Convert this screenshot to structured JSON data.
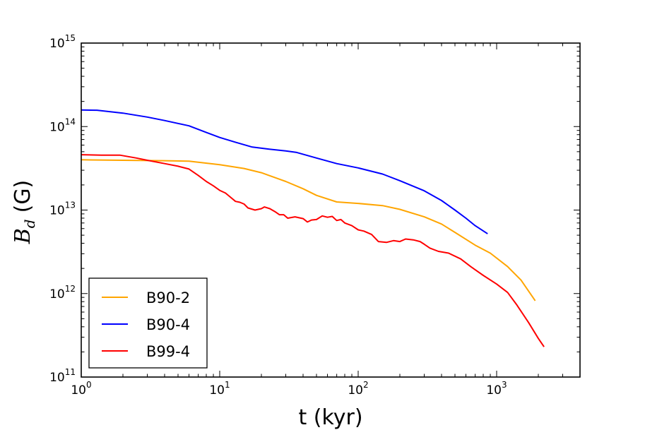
{
  "chart_data": {
    "type": "line",
    "xscale": "log",
    "yscale": "log",
    "xlim": [
      1,
      4000
    ],
    "ylim": [
      100000000000.0,
      1000000000000000.0
    ],
    "xlabel": "t (kyr)",
    "ylabel": {
      "symbol": "B",
      "subscript": "d",
      "unit": "(G)"
    },
    "xticks": [
      {
        "value": 1,
        "base": "10",
        "exp": "0"
      },
      {
        "value": 10,
        "base": "10",
        "exp": "1"
      },
      {
        "value": 100,
        "base": "10",
        "exp": "2"
      },
      {
        "value": 1000,
        "base": "10",
        "exp": "3"
      }
    ],
    "yticks": [
      {
        "value": 100000000000.0,
        "base": "10",
        "exp": "11"
      },
      {
        "value": 1000000000000.0,
        "base": "10",
        "exp": "12"
      },
      {
        "value": 10000000000000.0,
        "base": "10",
        "exp": "13"
      },
      {
        "value": 100000000000000.0,
        "base": "10",
        "exp": "14"
      },
      {
        "value": 1000000000000000.0,
        "base": "10",
        "exp": "15"
      }
    ],
    "legend_position": "lower-left",
    "series": [
      {
        "name": "B90-2",
        "color": "#ffa500",
        "points": [
          [
            1,
            40000000000000.0
          ],
          [
            2,
            39500000000000.0
          ],
          [
            4,
            39000000000000.0
          ],
          [
            6,
            38500000000000.0
          ],
          [
            10,
            35000000000000.0
          ],
          [
            15,
            31500000000000.0
          ],
          [
            20,
            28000000000000.0
          ],
          [
            30,
            22000000000000.0
          ],
          [
            40,
            18000000000000.0
          ],
          [
            50,
            15000000000000.0
          ],
          [
            70,
            12500000000000.0
          ],
          [
            100,
            12000000000000.0
          ],
          [
            150,
            11300000000000.0
          ],
          [
            200,
            10200000000000.0
          ],
          [
            300,
            8300000000000.0
          ],
          [
            400,
            6800000000000.0
          ],
          [
            500,
            5400000000000.0
          ],
          [
            700,
            3800000000000.0
          ],
          [
            900,
            3050000000000.0
          ],
          [
            1200,
            2100000000000.0
          ],
          [
            1500,
            1450000000000.0
          ],
          [
            1900,
            820000000000.0
          ]
        ]
      },
      {
        "name": "B90-4",
        "color": "#0000ff",
        "points": [
          [
            1,
            158000000000000.0
          ],
          [
            1.3,
            157000000000000.0
          ],
          [
            2,
            145000000000000.0
          ],
          [
            3,
            130000000000000.0
          ],
          [
            4,
            118000000000000.0
          ],
          [
            6,
            102000000000000.0
          ],
          [
            8,
            85000000000000.0
          ],
          [
            10,
            74000000000000.0
          ],
          [
            13,
            65000000000000.0
          ],
          [
            17,
            57000000000000.0
          ],
          [
            22,
            54000000000000.0
          ],
          [
            30,
            51000000000000.0
          ],
          [
            36,
            49000000000000.0
          ],
          [
            50,
            42000000000000.0
          ],
          [
            70,
            36000000000000.0
          ],
          [
            100,
            32000000000000.0
          ],
          [
            150,
            27000000000000.0
          ],
          [
            200,
            22500000000000.0
          ],
          [
            300,
            17000000000000.0
          ],
          [
            400,
            13000000000000.0
          ],
          [
            500,
            10000000000000.0
          ],
          [
            600,
            8000000000000.0
          ],
          [
            700,
            6500000000000.0
          ],
          [
            860,
            5200000000000.0
          ]
        ]
      },
      {
        "name": "B99-4",
        "color": "#ff0000",
        "points": [
          [
            1,
            46000000000000.0
          ],
          [
            1.4,
            45500000000000.0
          ],
          [
            1.9,
            45500000000000.0
          ],
          [
            2.5,
            42000000000000.0
          ],
          [
            3,
            39500000000000.0
          ],
          [
            4,
            36000000000000.0
          ],
          [
            5,
            33500000000000.0
          ],
          [
            6,
            31000000000000.0
          ],
          [
            7,
            26000000000000.0
          ],
          [
            8,
            22000000000000.0
          ],
          [
            9,
            19500000000000.0
          ],
          [
            10,
            17200000000000.0
          ],
          [
            11,
            16000000000000.0
          ],
          [
            12,
            14200000000000.0
          ],
          [
            13,
            12700000000000.0
          ],
          [
            14,
            12400000000000.0
          ],
          [
            15,
            11800000000000.0
          ],
          [
            16,
            10600000000000.0
          ],
          [
            18,
            10000000000000.0
          ],
          [
            20,
            10400000000000.0
          ],
          [
            21,
            10900000000000.0
          ],
          [
            23,
            10400000000000.0
          ],
          [
            25,
            9600000000000.0
          ],
          [
            27,
            8800000000000.0
          ],
          [
            29,
            8800000000000.0
          ],
          [
            31,
            8000000000000.0
          ],
          [
            35,
            8300000000000.0
          ],
          [
            40,
            7900000000000.0
          ],
          [
            43,
            7200000000000.0
          ],
          [
            46,
            7600000000000.0
          ],
          [
            50,
            7700000000000.0
          ],
          [
            55,
            8500000000000.0
          ],
          [
            60,
            8200000000000.0
          ],
          [
            65,
            8400000000000.0
          ],
          [
            70,
            7500000000000.0
          ],
          [
            75,
            7700000000000.0
          ],
          [
            80,
            7000000000000.0
          ],
          [
            90,
            6500000000000.0
          ],
          [
            100,
            5800000000000.0
          ],
          [
            110,
            5600000000000.0
          ],
          [
            125,
            5100000000000.0
          ],
          [
            140,
            4200000000000.0
          ],
          [
            160,
            4100000000000.0
          ],
          [
            180,
            4300000000000.0
          ],
          [
            200,
            4200000000000.0
          ],
          [
            220,
            4500000000000.0
          ],
          [
            250,
            4400000000000.0
          ],
          [
            280,
            4200000000000.0
          ],
          [
            300,
            3900000000000.0
          ],
          [
            330,
            3500000000000.0
          ],
          [
            380,
            3200000000000.0
          ],
          [
            450,
            3050000000000.0
          ],
          [
            550,
            2600000000000.0
          ],
          [
            650,
            2100000000000.0
          ],
          [
            800,
            1650000000000.0
          ],
          [
            1000,
            1300000000000.0
          ],
          [
            1200,
            1030000000000.0
          ],
          [
            1400,
            730000000000.0
          ],
          [
            1700,
            450000000000.0
          ],
          [
            2000,
            290000000000.0
          ],
          [
            2200,
            230000000000.0
          ]
        ]
      }
    ]
  }
}
